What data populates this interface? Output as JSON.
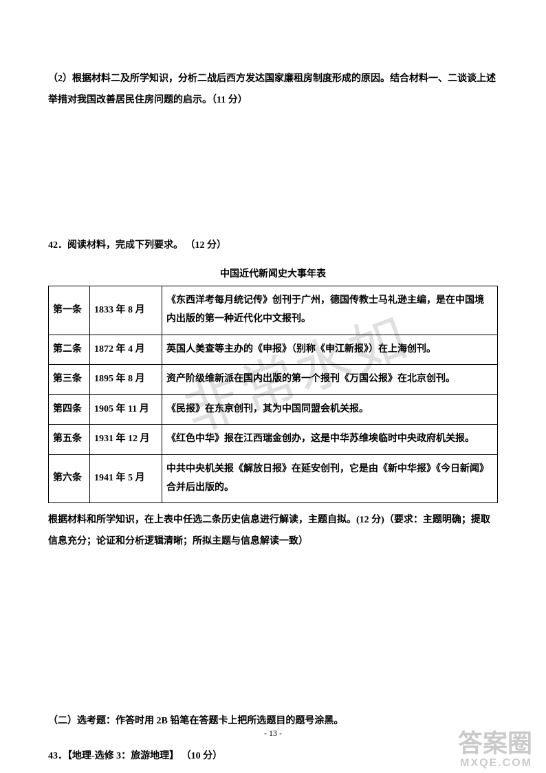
{
  "question2": {
    "text": "（2）根据材料二及所学知识，分析二战后西方发达国家廉租房制度形成的原因。结合材料一、二谈谈上述举措对我国改善居民住房问题的启示。（11 分）"
  },
  "question42": {
    "label": "42．阅读材料，完成下列要求。 （12 分）",
    "tableTitle": "中国近代新闻史大事年表",
    "rows": [
      {
        "num": "第一条",
        "date": "1833 年 8 月",
        "content": "《东西洋考每月统记传》创刊于广州，德国传教士马礼逊主编，是在中国境内出版的第一种近代化中文报刊。"
      },
      {
        "num": "第二条",
        "date": "1872 年 4 月",
        "content": "英国人美查等主办的《申报》（别称《申江新报》）在上海创刊。"
      },
      {
        "num": "第三条",
        "date": "1895 年 8 月",
        "content": "资产阶级维新派在国内出版的第一个报刊《万国公报》在北京创刊。"
      },
      {
        "num": "第四条",
        "date": "1905 年 11 月",
        "content": "《民报》在东京创刊，其为中国同盟会机关报。"
      },
      {
        "num": "第五条",
        "date": "1931 年 12 月",
        "content": "《红色中华》报在江西瑞金创办，这是中华苏维埃临时中央政府机关报。"
      },
      {
        "num": "第六条",
        "date": "1941 年 5 月",
        "content": "中共中央机关报《解放日报》在延安创刊，它是由《新中华报》《今日新闻》合并后出版的。"
      }
    ],
    "instruction": "根据材料和所学知识，在上表中任选二条历史信息进行解读，主题自拟。(12 分)（要求：主题明确；提取信息充分；论证和分析逻辑清晰；所拟主题与信息解读一致）"
  },
  "sectionTwo": {
    "text": "（二）选考题：作答时用 2B 铅笔在答题卡上把所选题目的题号涂黑。"
  },
  "question43": {
    "text": "43．【地理-选修 3：旅游地理】 （10 分）"
  },
  "pageNum": "- 13 -",
  "watermarkMain": "非常水如",
  "watermarkLogo": "答案圈",
  "watermarkUrl": "MXQE.COM"
}
